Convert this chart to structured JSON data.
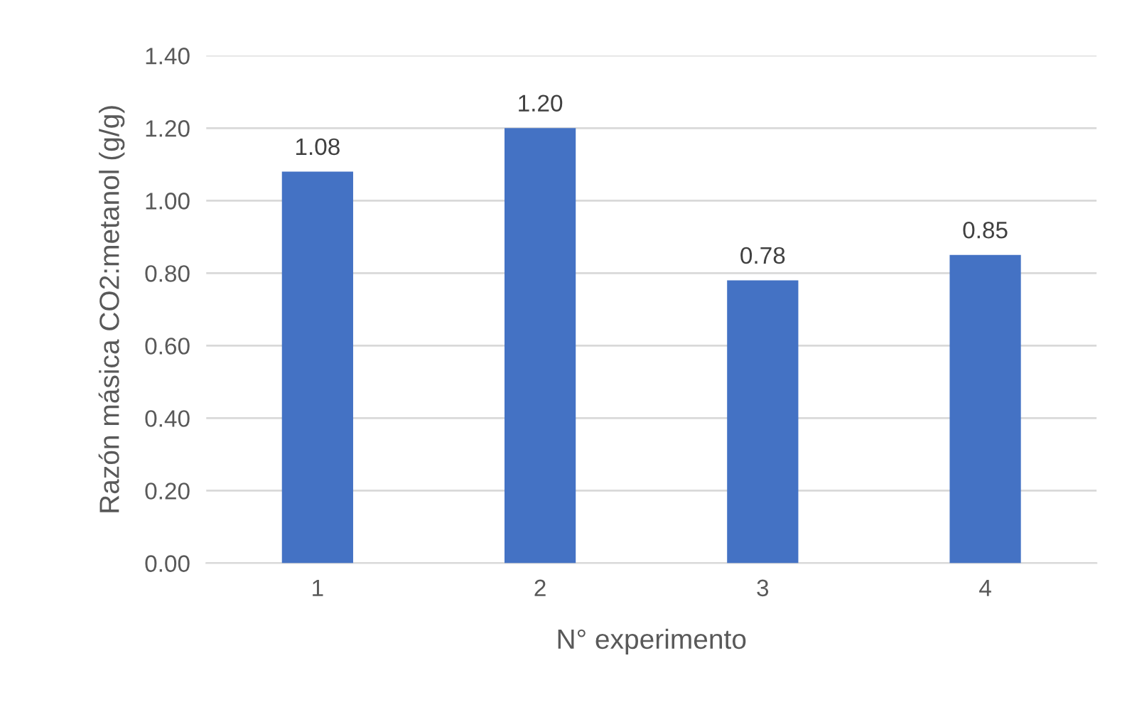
{
  "chart_data": {
    "type": "bar",
    "xlabel": "N° experimento",
    "ylabel": "Razón másica CO2:metanol (g/g)",
    "categories": [
      "1",
      "2",
      "3",
      "4"
    ],
    "values": [
      1.08,
      1.2,
      0.78,
      0.85
    ],
    "value_labels": [
      "1.08",
      "1.20",
      "0.78",
      "0.85"
    ],
    "color": "#4472c4",
    "ylim": [
      0,
      1.4
    ],
    "yticks": [
      {
        "value": 0,
        "label": "0.00"
      },
      {
        "value": 0.2,
        "label": "0.20"
      },
      {
        "value": 0.4,
        "label": "0.40"
      },
      {
        "value": 0.6,
        "label": "0.60"
      },
      {
        "value": 0.8,
        "label": "0.80"
      },
      {
        "value": 1.0,
        "label": "1.00"
      },
      {
        "value": 1.2,
        "label": "1.20"
      },
      {
        "value": 1.4,
        "label": "1.40"
      }
    ],
    "grid": "y",
    "legend": false
  }
}
